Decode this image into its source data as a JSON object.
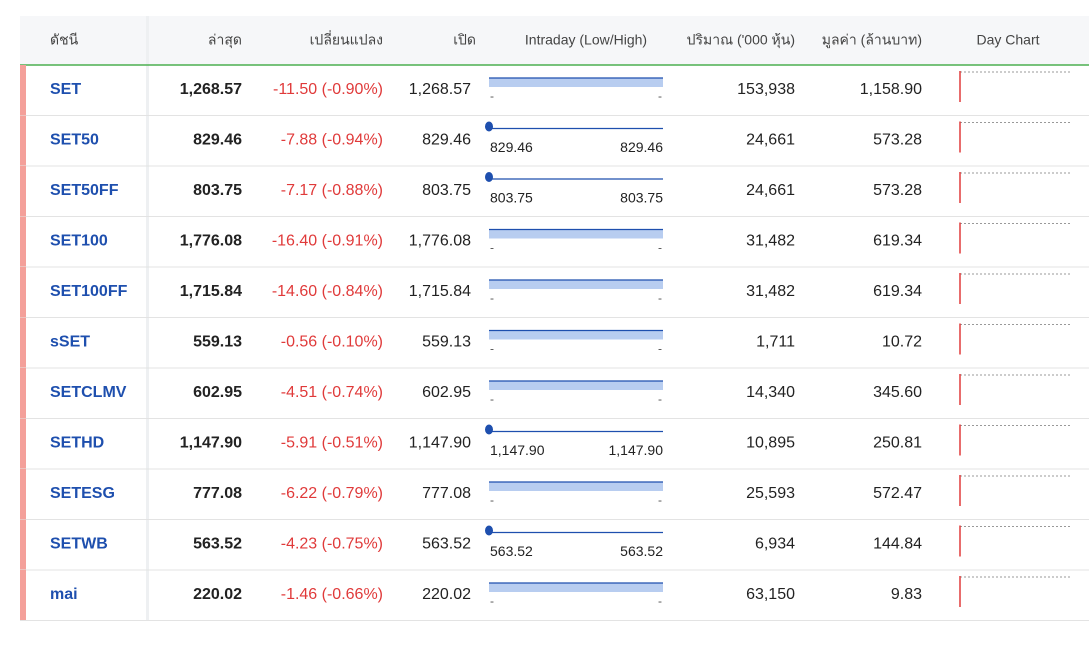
{
  "table": {
    "columns": [
      "ดัชนี",
      "ล่าสุด",
      "เปลี่ยนแปลง",
      "เปิด",
      "Intraday (Low/High)",
      "ปริมาณ ('000 หุ้น)",
      "มูลค่า (ล้านบาท)",
      "Day Chart"
    ],
    "rows": [
      {
        "index": "SET",
        "last": "1,268.57",
        "change": "-11.50 (-0.90%)",
        "open": "1,268.57",
        "low": "-",
        "high": "-",
        "volume": "153,938",
        "value": "1,158.90"
      },
      {
        "index": "SET50",
        "last": "829.46",
        "change": "-7.88 (-0.94%)",
        "open": "829.46",
        "low": "829.46",
        "high": "829.46",
        "volume": "24,661",
        "value": "573.28"
      },
      {
        "index": "SET50FF",
        "last": "803.75",
        "change": "-7.17 (-0.88%)",
        "open": "803.75",
        "low": "803.75",
        "high": "803.75",
        "volume": "24,661",
        "value": "573.28"
      },
      {
        "index": "SET100",
        "last": "1,776.08",
        "change": "-16.40 (-0.91%)",
        "open": "1,776.08",
        "low": "-",
        "high": "-",
        "volume": "31,482",
        "value": "619.34"
      },
      {
        "index": "SET100FF",
        "last": "1,715.84",
        "change": "-14.60 (-0.84%)",
        "open": "1,715.84",
        "low": "-",
        "high": "-",
        "volume": "31,482",
        "value": "619.34"
      },
      {
        "index": "sSET",
        "last": "559.13",
        "change": "-0.56 (-0.10%)",
        "open": "559.13",
        "low": "-",
        "high": "-",
        "volume": "1,711",
        "value": "10.72"
      },
      {
        "index": "SETCLMV",
        "last": "602.95",
        "change": "-4.51 (-0.74%)",
        "open": "602.95",
        "low": "-",
        "high": "-",
        "volume": "14,340",
        "value": "345.60"
      },
      {
        "index": "SETHD",
        "last": "1,147.90",
        "change": "-5.91 (-0.51%)",
        "open": "1,147.90",
        "low": "1,147.90",
        "high": "1,147.90",
        "volume": "10,895",
        "value": "250.81"
      },
      {
        "index": "SETESG",
        "last": "777.08",
        "change": "-6.22 (-0.79%)",
        "open": "777.08",
        "low": "-",
        "high": "-",
        "volume": "25,593",
        "value": "572.47"
      },
      {
        "index": "SETWB",
        "last": "563.52",
        "change": "-4.23 (-0.75%)",
        "open": "563.52",
        "low": "563.52",
        "high": "563.52",
        "volume": "6,934",
        "value": "144.84"
      },
      {
        "index": "mai",
        "last": "220.02",
        "change": "-1.46 (-0.66%)",
        "open": "220.02",
        "low": "-",
        "high": "-",
        "volume": "63,150",
        "value": "9.83"
      }
    ]
  }
}
